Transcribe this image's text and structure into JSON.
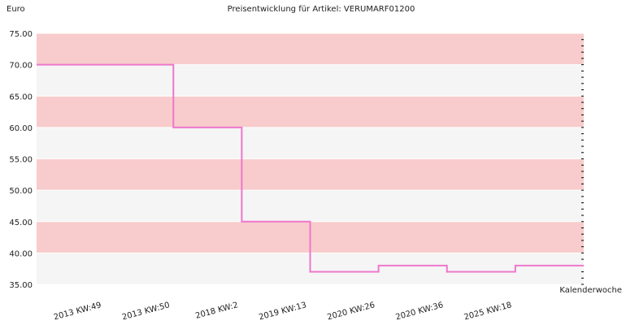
{
  "chart_data": {
    "type": "step-line",
    "title": "Preisentwicklung für Artikel: VERUMARF01200",
    "y_label": "Euro",
    "x_label": "Kalenderwoche",
    "categories": [
      null,
      "2013 KW:49",
      "2013 KW:50",
      "2018 KW:2",
      "2019 KW:13",
      "2020 KW:26",
      "2020 KW:36",
      "2025 KW:18"
    ],
    "series": [
      {
        "color": "#ee77cc",
        "values": [
          70,
          70,
          60,
          45,
          37,
          38,
          37,
          38
        ]
      }
    ],
    "ylim": [
      35,
      75
    ],
    "yticks": [
      {
        "value": 35,
        "label": "35.00"
      },
      {
        "value": 40,
        "label": "40.00"
      },
      {
        "value": 45,
        "label": "45.00"
      },
      {
        "value": 50,
        "label": "50.00"
      },
      {
        "value": 55,
        "label": "55.00"
      },
      {
        "value": 60,
        "label": "60.00"
      },
      {
        "value": 65,
        "label": "65.00"
      },
      {
        "value": 70,
        "label": "70.00"
      },
      {
        "value": 75,
        "label": "75.00"
      }
    ],
    "band_colors": [
      "#f5f5f5",
      "#f8cccc"
    ]
  }
}
